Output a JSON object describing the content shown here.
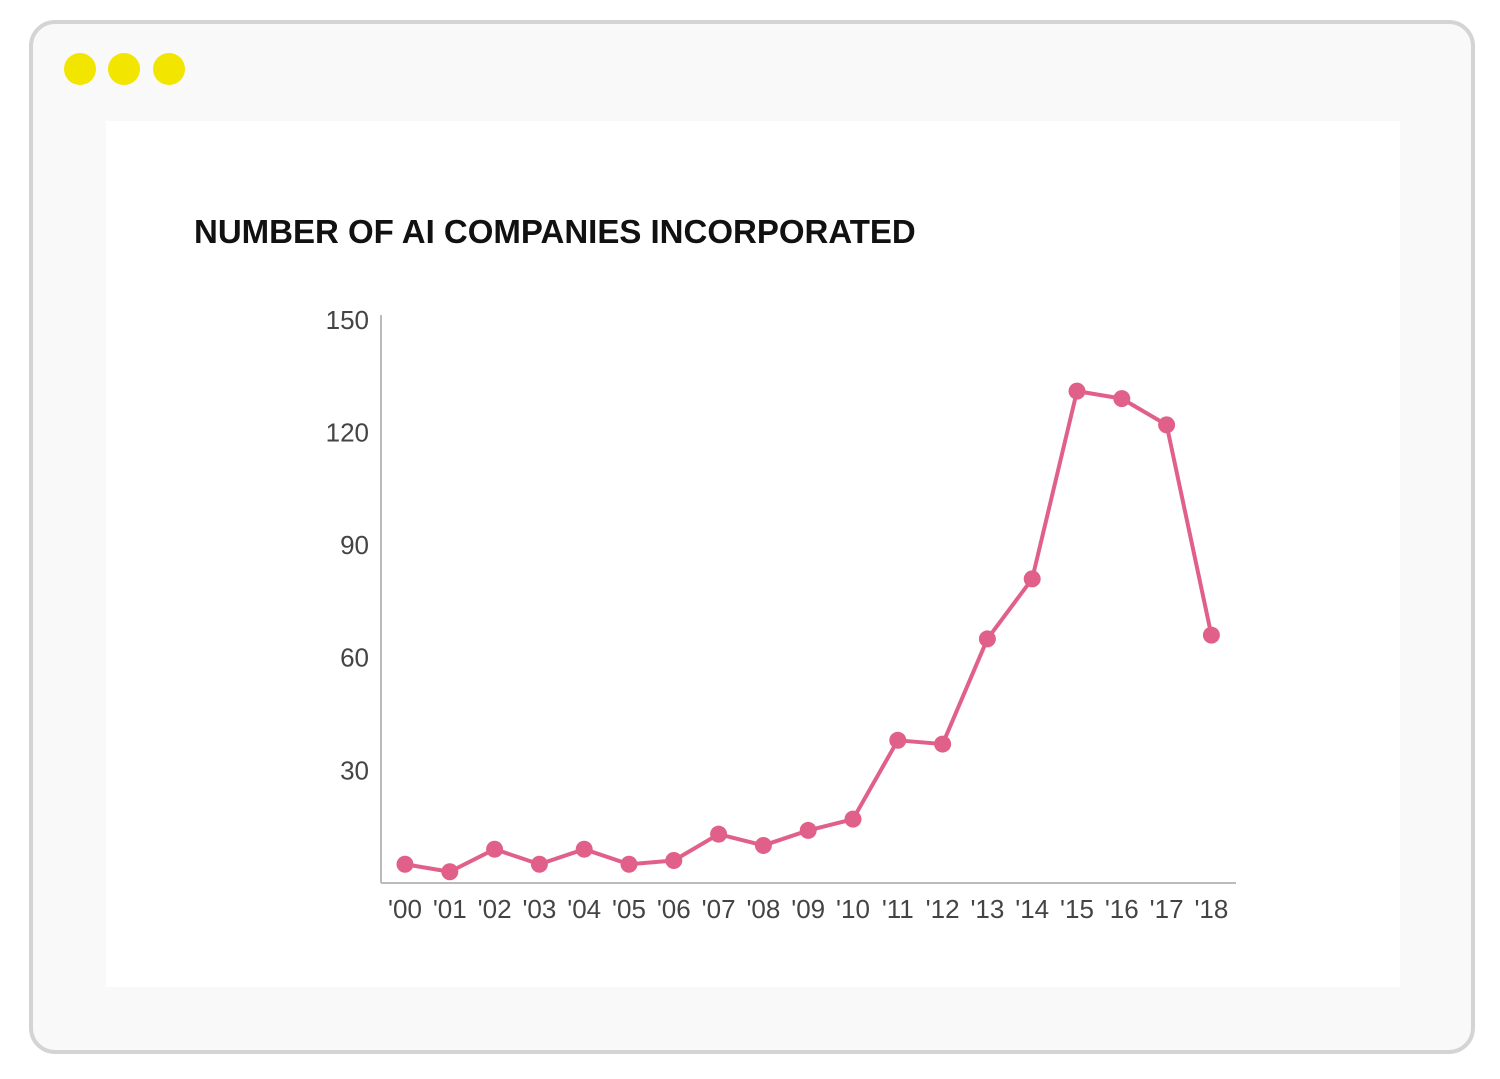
{
  "window": {
    "controls": [
      {
        "name": "yellow-dot",
        "color": "#f2e500"
      },
      {
        "name": "yellow-dot",
        "color": "#f2e500"
      },
      {
        "name": "yellow-dot",
        "color": "#f2e500"
      }
    ]
  },
  "chart_data": {
    "type": "line",
    "title": "NUMBER OF AI COMPANIES INCORPORATED",
    "xlabel": "",
    "ylabel": "",
    "categories": [
      "'00",
      "'01",
      "'02",
      "'03",
      "'04",
      "'05",
      "'06",
      "'07",
      "'08",
      "'09",
      "'10",
      "'11",
      "'12",
      "'13",
      "'14",
      "'15",
      "'16",
      "'17",
      "'18"
    ],
    "series": [
      {
        "color": "#e0608a",
        "values": [
          5,
          3,
          9,
          5,
          9,
          5,
          6,
          13,
          10,
          14,
          17,
          38,
          37,
          65,
          81,
          131,
          129,
          122,
          66
        ]
      }
    ],
    "ylim": [
      0,
      150
    ],
    "yticks": [
      30,
      60,
      90,
      120,
      150
    ],
    "grid": false,
    "legend": "none"
  }
}
